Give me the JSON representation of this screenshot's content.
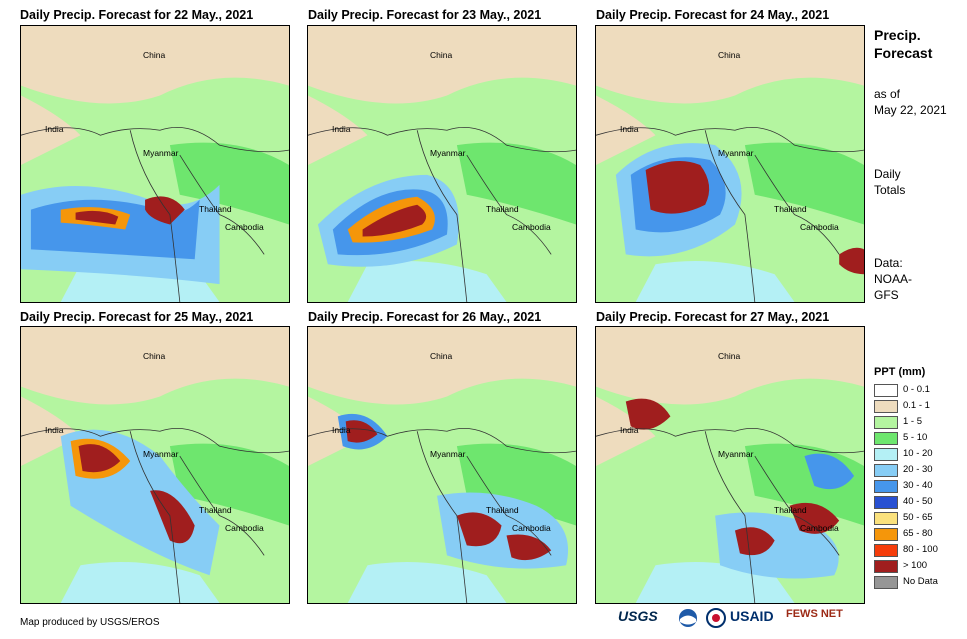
{
  "panels": [
    {
      "title": "Daily Precip. Forecast for 22 May., 2021",
      "labels": {
        "china": "China",
        "india": "India",
        "myanmar": "Myanmar",
        "thailand": "Thailand",
        "cambodia": "Cambodia"
      }
    },
    {
      "title": "Daily Precip. Forecast for 23 May., 2021",
      "labels": {
        "china": "China",
        "india": "India",
        "myanmar": "Myanmar",
        "thailand": "Thailand",
        "cambodia": "Cambodia"
      }
    },
    {
      "title": "Daily Precip. Forecast for 24 May., 2021",
      "labels": {
        "china": "China",
        "india": "India",
        "myanmar": "Myanmar",
        "thailand": "Thailand",
        "cambodia": "Cambodia"
      }
    },
    {
      "title": "Daily Precip. Forecast for 25 May., 2021",
      "labels": {
        "china": "China",
        "india": "India",
        "myanmar": "Myanmar",
        "thailand": "Thailand",
        "cambodia": "Cambodia"
      }
    },
    {
      "title": "Daily Precip. Forecast for 26 May., 2021",
      "labels": {
        "china": "China",
        "india": "India",
        "myanmar": "Myanmar",
        "thailand": "Thailand",
        "cambodia": "Cambodia"
      }
    },
    {
      "title": "Daily Precip. Forecast for 27 May., 2021",
      "labels": {
        "china": "China",
        "india": "India",
        "myanmar": "Myanmar",
        "thailand": "Thailand",
        "cambodia": "Cambodia"
      }
    }
  ],
  "side": {
    "title_line1": "Precip.",
    "title_line2": "Forecast",
    "asof_line1": "as of",
    "asof_line2": "May 22, 2021",
    "daily_line1": "Daily",
    "daily_line2": "Totals",
    "data_line1": "Data:",
    "data_line2": "NOAA-",
    "data_line3": "GFS"
  },
  "legend": {
    "title": "PPT (mm)",
    "items": [
      {
        "label": "0 - 0.1",
        "color": "#ffffff"
      },
      {
        "label": "0.1 - 1",
        "color": "#eedcbe"
      },
      {
        "label": "1 - 5",
        "color": "#b4f5a0"
      },
      {
        "label": "5 - 10",
        "color": "#6ee66e"
      },
      {
        "label": "10 - 20",
        "color": "#b4f0f5"
      },
      {
        "label": "20 - 30",
        "color": "#87cdf5"
      },
      {
        "label": "30 - 40",
        "color": "#4696eb"
      },
      {
        "label": "40 - 50",
        "color": "#2850d2"
      },
      {
        "label": "50 - 65",
        "color": "#fae17d"
      },
      {
        "label": "65 - 80",
        "color": "#f5960a"
      },
      {
        "label": "80 - 100",
        "color": "#f53c0a"
      },
      {
        "label": "> 100",
        "color": "#a01e1e"
      },
      {
        "label": "No Data",
        "color": "#969696"
      }
    ]
  },
  "footer": "Map produced by USGS/EROS",
  "logos": [
    "USGS",
    "USAID",
    "FEWS NET"
  ]
}
